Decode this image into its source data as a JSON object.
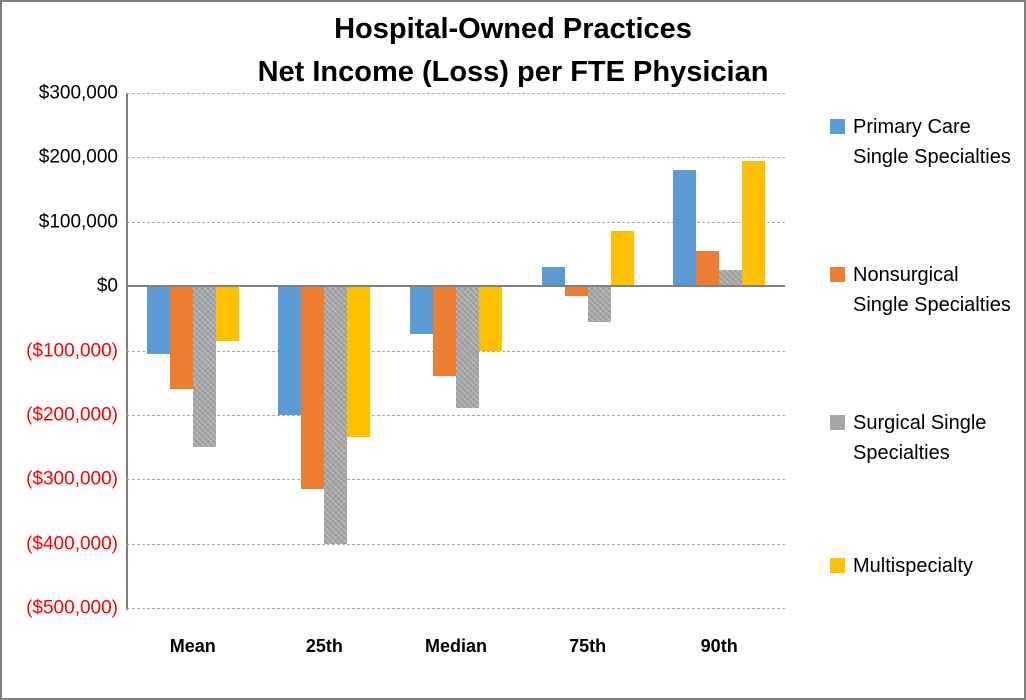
{
  "window": {
    "background_color": "#FFFFFF",
    "border_color": "#808080"
  },
  "chart_data": {
    "type": "bar",
    "title": "Hospital-Owned Practices\nNet Income (Loss) per FTE Physician",
    "categories": [
      "Mean",
      "25th",
      "Median",
      "75th",
      "90th"
    ],
    "series": [
      {
        "name": "Primary Care Single Specialties",
        "color": "#5B9BD5",
        "values": [
          -105000,
          -200000,
          -75000,
          30000,
          180000
        ]
      },
      {
        "name": "Nonsurgical Single Specialties",
        "color": "#ED7D31",
        "values": [
          -160000,
          -315000,
          -140000,
          -15000,
          55000
        ]
      },
      {
        "name": "Surgical Single Specialties",
        "color": "#A5A5A5",
        "texture": "crosshatch",
        "values": [
          -250000,
          -400000,
          -190000,
          -55000,
          25000
        ]
      },
      {
        "name": "Multispecialty",
        "color": "#FFC000",
        "values": [
          -85000,
          -235000,
          -100000,
          85000,
          195000
        ]
      }
    ],
    "yticks": [
      {
        "label": "$300,000",
        "value": 300000
      },
      {
        "label": "$200,000",
        "value": 200000
      },
      {
        "label": "$100,000",
        "value": 100000
      },
      {
        "label": "$0",
        "value": 0
      },
      {
        "label": "($100,000)",
        "value": -100000
      },
      {
        "label": "($200,000)",
        "value": -200000
      },
      {
        "label": "($300,000)",
        "value": -300000
      },
      {
        "label": "($400,000)",
        "value": -400000
      },
      {
        "label": "($500,000)",
        "value": -500000
      }
    ],
    "ylim": [
      -500000,
      300000
    ],
    "xlabel": "",
    "ylabel": "",
    "grid": true,
    "zero_line": true,
    "negative_label_color": "#FF0000",
    "legend_position": "right"
  }
}
